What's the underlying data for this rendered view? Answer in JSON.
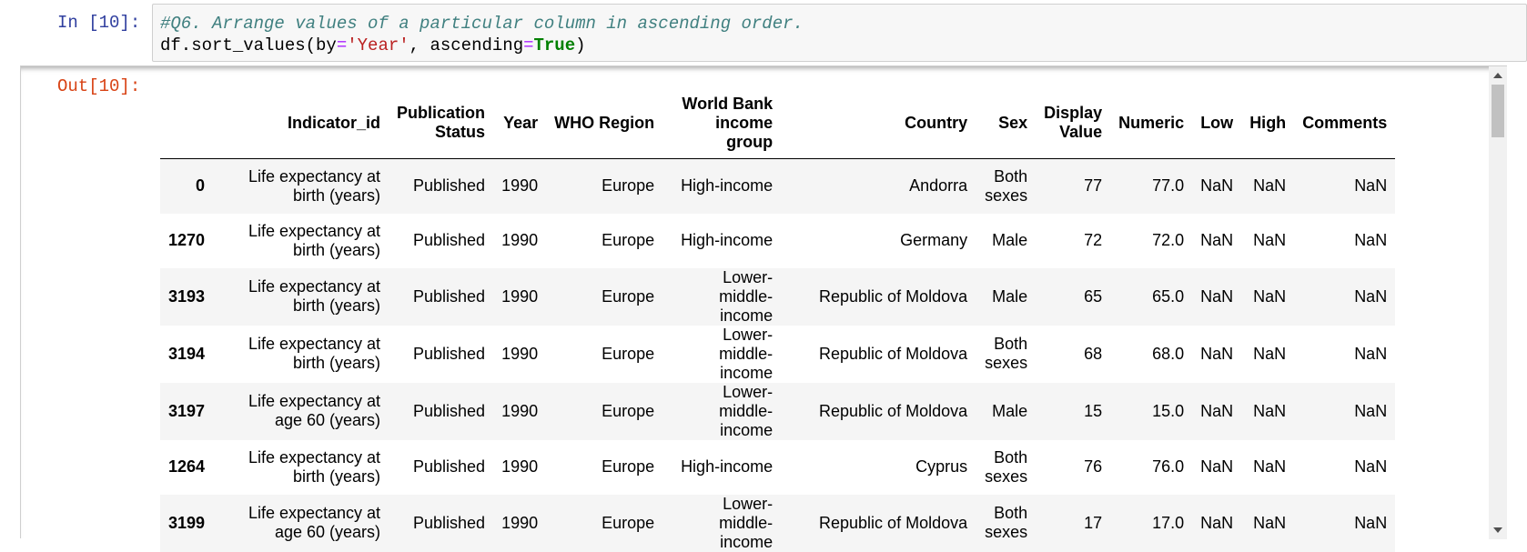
{
  "cell": {
    "in_prompt": "In [10]:",
    "out_prompt": "Out[10]:",
    "code": {
      "comment": "#Q6. Arrange values of a particular column in ascending order.",
      "line2": [
        {
          "t": "df.sort_values(by",
          "c": "plain"
        },
        {
          "t": "=",
          "c": "op"
        },
        {
          "t": "'Year'",
          "c": "str"
        },
        {
          "t": ", ascending",
          "c": "plain"
        },
        {
          "t": "=",
          "c": "op"
        },
        {
          "t": "True",
          "c": "kw"
        },
        {
          "t": ")",
          "c": "plain"
        }
      ]
    }
  },
  "table": {
    "columns": [
      "",
      "Indicator_id",
      "Publication Status",
      "Year",
      "WHO Region",
      "World Bank income group",
      "Country",
      "Sex",
      "Display Value",
      "Numeric",
      "Low",
      "High",
      "Comments"
    ],
    "rows": [
      [
        "0",
        "Life expectancy at birth (years)",
        "Published",
        "1990",
        "Europe",
        "High-income",
        "Andorra",
        "Both sexes",
        "77",
        "77.0",
        "NaN",
        "NaN",
        "NaN"
      ],
      [
        "1270",
        "Life expectancy at birth (years)",
        "Published",
        "1990",
        "Europe",
        "High-income",
        "Germany",
        "Male",
        "72",
        "72.0",
        "NaN",
        "NaN",
        "NaN"
      ],
      [
        "3193",
        "Life expectancy at birth (years)",
        "Published",
        "1990",
        "Europe",
        "Lower-middle-income",
        "Republic of Moldova",
        "Male",
        "65",
        "65.0",
        "NaN",
        "NaN",
        "NaN"
      ],
      [
        "3194",
        "Life expectancy at birth (years)",
        "Published",
        "1990",
        "Europe",
        "Lower-middle-income",
        "Republic of Moldova",
        "Both sexes",
        "68",
        "68.0",
        "NaN",
        "NaN",
        "NaN"
      ],
      [
        "3197",
        "Life expectancy at age 60 (years)",
        "Published",
        "1990",
        "Europe",
        "Lower-middle-income",
        "Republic of Moldova",
        "Male",
        "15",
        "15.0",
        "NaN",
        "NaN",
        "NaN"
      ],
      [
        "1264",
        "Life expectancy at birth (years)",
        "Published",
        "1990",
        "Europe",
        "High-income",
        "Cyprus",
        "Both sexes",
        "76",
        "76.0",
        "NaN",
        "NaN",
        "NaN"
      ],
      [
        "3199",
        "Life expectancy at age 60 (years)",
        "Published",
        "1990",
        "Europe",
        "Lower-middle-income",
        "Republic of Moldova",
        "Both sexes",
        "17",
        "17.0",
        "NaN",
        "NaN",
        "NaN"
      ]
    ]
  }
}
